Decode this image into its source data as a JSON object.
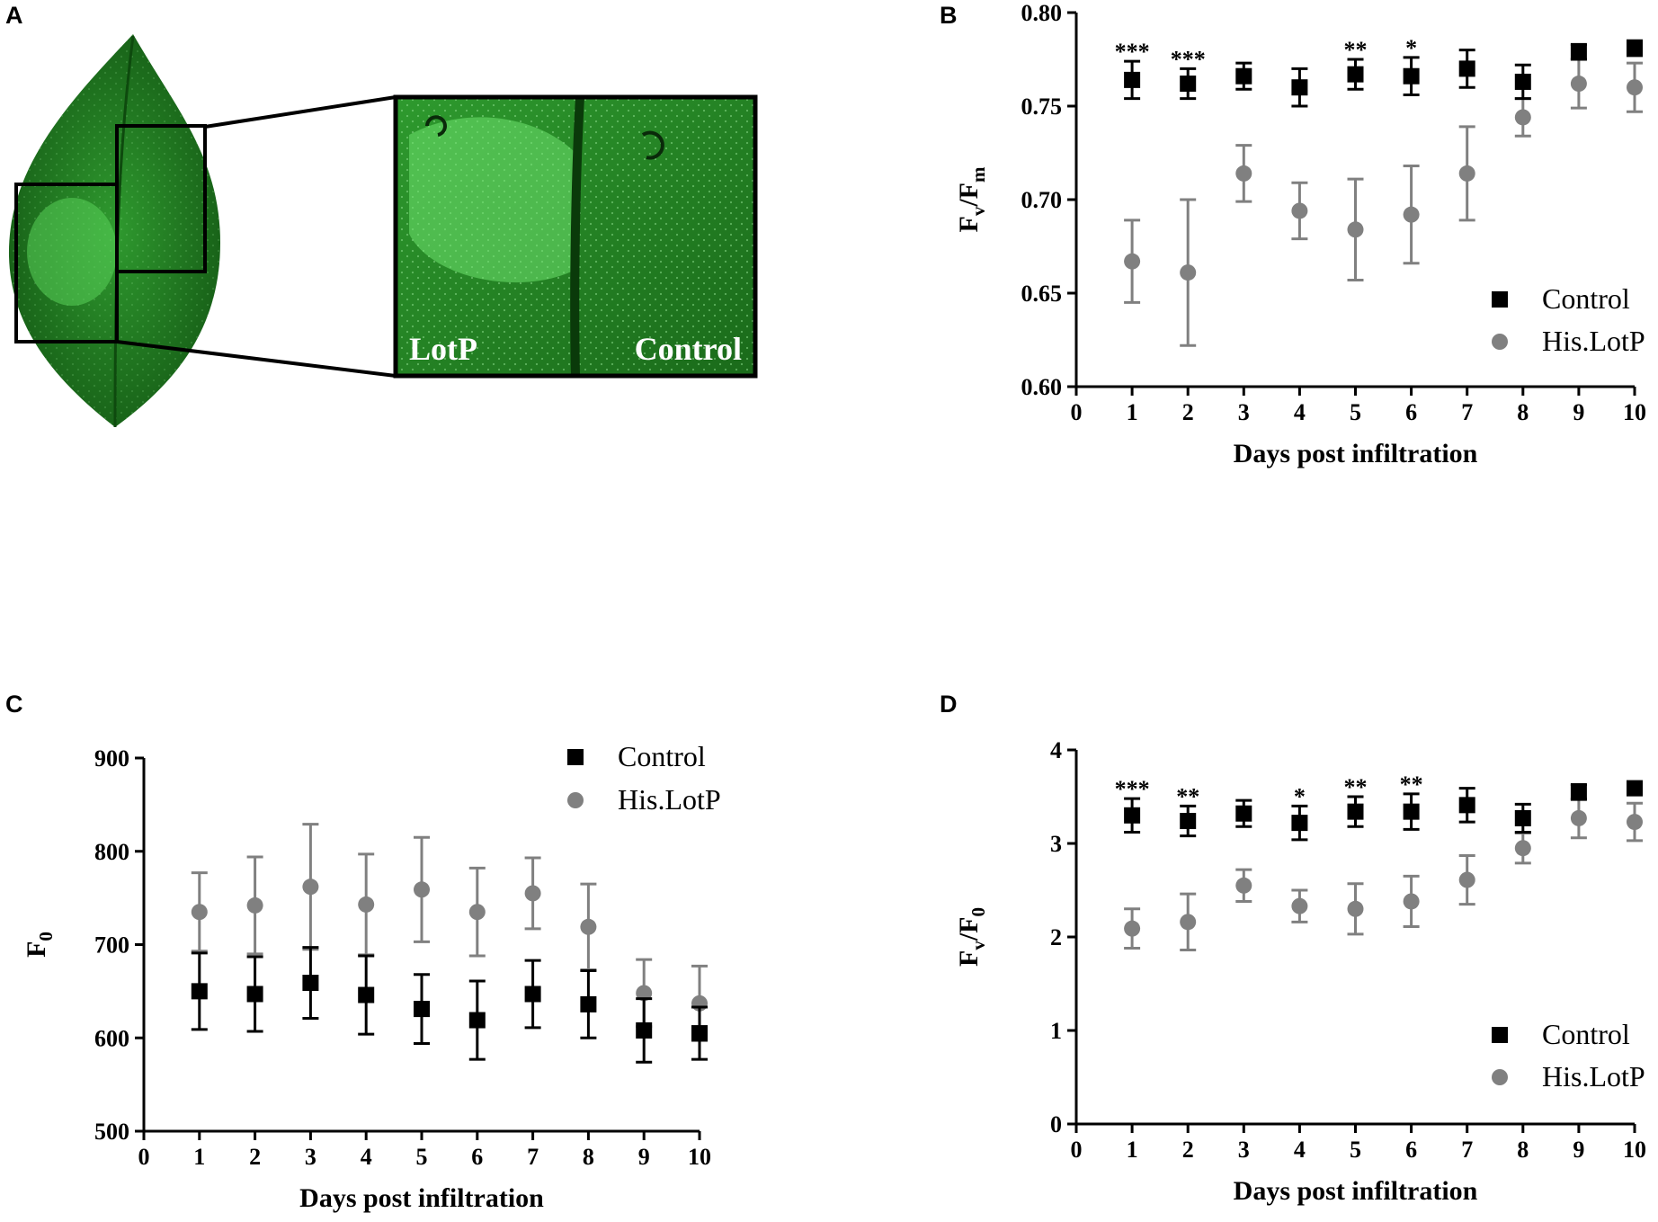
{
  "panel_labels": {
    "A": "A",
    "B": "B",
    "C": "C",
    "D": "D"
  },
  "photo": {
    "label_left": "LotP",
    "label_right": "Control",
    "colors": {
      "leaf": "#1f7a1f",
      "leaf_light": "#4fd64f"
    }
  },
  "colors": {
    "control": "#000000",
    "hislotp": "#808080"
  },
  "chart_data": [
    {
      "id": "B",
      "type": "scatter",
      "xlabel": "Days post infiltration",
      "ylabel": {
        "base1": "F",
        "sub1": "v",
        "mid": "/F",
        "sub2": "m"
      },
      "xlim": [
        0,
        10
      ],
      "ylim": [
        0.6,
        0.8
      ],
      "xticks": [
        "0",
        "1",
        "2",
        "3",
        "4",
        "5",
        "6",
        "7",
        "8",
        "9",
        "10"
      ],
      "yticks": [
        "0.60",
        "0.65",
        "0.70",
        "0.75",
        "0.80"
      ],
      "legend": [
        "Control",
        "His.LotP"
      ],
      "series": [
        {
          "name": "Control",
          "marker": "square",
          "x": [
            1,
            2,
            3,
            4,
            5,
            6,
            7,
            8,
            9,
            10
          ],
          "values": [
            0.764,
            0.762,
            0.766,
            0.76,
            0.767,
            0.766,
            0.77,
            0.763,
            0.779,
            0.781
          ],
          "errors": [
            0.01,
            0.008,
            0.007,
            0.01,
            0.008,
            0.01,
            0.01,
            0.009,
            0.004,
            0.004
          ]
        },
        {
          "name": "His.LotP",
          "marker": "circle",
          "x": [
            1,
            2,
            3,
            4,
            5,
            6,
            7,
            8,
            9,
            10
          ],
          "values": [
            0.667,
            0.661,
            0.714,
            0.694,
            0.684,
            0.692,
            0.714,
            0.744,
            0.762,
            0.76
          ],
          "errors": [
            0.022,
            0.039,
            0.015,
            0.015,
            0.027,
            0.026,
            0.025,
            0.01,
            0.013,
            0.013
          ]
        }
      ],
      "annotations": [
        {
          "x": 1,
          "text": "***"
        },
        {
          "x": 2,
          "text": "***"
        },
        {
          "x": 5,
          "text": "**"
        },
        {
          "x": 6,
          "text": "*"
        }
      ]
    },
    {
      "id": "C",
      "type": "scatter",
      "xlabel": "Days post infiltration",
      "ylabel": {
        "base1": "F",
        "sub1": "0",
        "mid": "",
        "sub2": ""
      },
      "xlim": [
        0,
        10
      ],
      "ylim": [
        500,
        900
      ],
      "xticks": [
        "0",
        "1",
        "2",
        "3",
        "4",
        "5",
        "6",
        "7",
        "8",
        "9",
        "10"
      ],
      "yticks": [
        "500",
        "600",
        "700",
        "800",
        "900"
      ],
      "legend": [
        "Control",
        "His.LotP"
      ],
      "series": [
        {
          "name": "Control",
          "marker": "square",
          "x": [
            1,
            2,
            3,
            4,
            5,
            6,
            7,
            8,
            9,
            10
          ],
          "values": [
            650,
            647,
            659,
            646,
            631,
            619,
            647,
            636,
            608,
            605
          ],
          "errors": [
            41,
            40,
            38,
            42,
            37,
            42,
            36,
            36,
            34,
            28
          ]
        },
        {
          "name": "His.LotP",
          "marker": "circle",
          "x": [
            1,
            2,
            3,
            4,
            5,
            6,
            7,
            8,
            9,
            10
          ],
          "values": [
            735,
            742,
            762,
            743,
            759,
            735,
            755,
            719,
            648,
            637
          ],
          "errors": [
            42,
            52,
            67,
            54,
            56,
            47,
            38,
            46,
            36,
            40
          ]
        }
      ],
      "annotations": []
    },
    {
      "id": "D",
      "type": "scatter",
      "xlabel": "Days post infiltration",
      "ylabel": {
        "base1": "F",
        "sub1": "v",
        "mid": "/F",
        "sub2": "0"
      },
      "xlim": [
        0,
        10
      ],
      "ylim": [
        0,
        4
      ],
      "xticks": [
        "0",
        "1",
        "2",
        "3",
        "4",
        "5",
        "6",
        "7",
        "8",
        "9",
        "10"
      ],
      "yticks": [
        "0",
        "1",
        "2",
        "3",
        "4"
      ],
      "legend": [
        "Control",
        "His.LotP"
      ],
      "series": [
        {
          "name": "Control",
          "marker": "square",
          "x": [
            1,
            2,
            3,
            4,
            5,
            6,
            7,
            8,
            9,
            10
          ],
          "values": [
            3.3,
            3.24,
            3.32,
            3.22,
            3.34,
            3.34,
            3.41,
            3.27,
            3.55,
            3.59
          ],
          "errors": [
            0.18,
            0.16,
            0.14,
            0.18,
            0.16,
            0.19,
            0.18,
            0.15,
            0.08,
            0.07
          ]
        },
        {
          "name": "His.LotP",
          "marker": "circle",
          "x": [
            1,
            2,
            3,
            4,
            5,
            6,
            7,
            8,
            9,
            10
          ],
          "values": [
            2.09,
            2.16,
            2.55,
            2.33,
            2.3,
            2.38,
            2.61,
            2.95,
            3.27,
            3.23
          ],
          "errors": [
            0.21,
            0.3,
            0.17,
            0.17,
            0.27,
            0.27,
            0.26,
            0.16,
            0.21,
            0.2
          ]
        }
      ],
      "annotations": [
        {
          "x": 1,
          "text": "***"
        },
        {
          "x": 2,
          "text": "**"
        },
        {
          "x": 4,
          "text": "*"
        },
        {
          "x": 5,
          "text": "**"
        },
        {
          "x": 6,
          "text": "**"
        }
      ]
    }
  ]
}
